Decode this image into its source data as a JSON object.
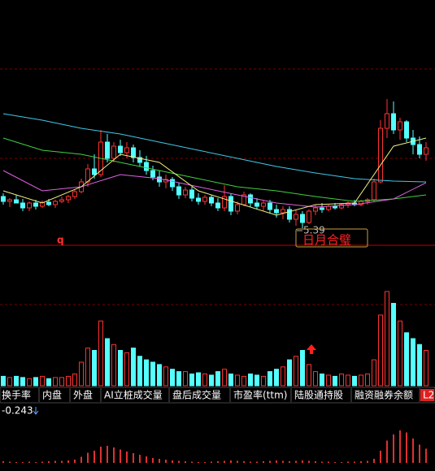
{
  "chart_data": {
    "type": "candlestick",
    "ylim": [
      5.2,
      8.2
    ],
    "candles": [
      [
        5.78,
        5.82,
        5.68,
        5.72
      ],
      [
        5.72,
        5.76,
        5.65,
        5.74
      ],
      [
        5.74,
        5.8,
        5.7,
        5.7
      ],
      [
        5.7,
        5.75,
        5.6,
        5.64
      ],
      [
        5.64,
        5.72,
        5.6,
        5.7
      ],
      [
        5.7,
        5.74,
        5.62,
        5.66
      ],
      [
        5.66,
        5.73,
        5.64,
        5.71
      ],
      [
        5.71,
        5.75,
        5.66,
        5.68
      ],
      [
        5.68,
        5.74,
        5.64,
        5.72
      ],
      [
        5.72,
        5.78,
        5.7,
        5.74
      ],
      [
        5.74,
        5.8,
        5.7,
        5.78
      ],
      [
        5.78,
        5.86,
        5.75,
        5.84
      ],
      [
        5.84,
        6.0,
        5.82,
        5.96
      ],
      [
        5.96,
        6.18,
        5.9,
        6.12
      ],
      [
        6.12,
        6.3,
        6.0,
        6.05
      ],
      [
        6.05,
        6.6,
        6.02,
        6.45
      ],
      [
        6.45,
        6.55,
        6.2,
        6.25
      ],
      [
        6.25,
        6.45,
        6.2,
        6.4
      ],
      [
        6.4,
        6.48,
        6.28,
        6.32
      ],
      [
        6.32,
        6.45,
        6.25,
        6.38
      ],
      [
        6.38,
        6.42,
        6.2,
        6.26
      ],
      [
        6.26,
        6.35,
        6.15,
        6.2
      ],
      [
        6.2,
        6.28,
        6.05,
        6.1
      ],
      [
        6.1,
        6.16,
        5.98,
        6.02
      ],
      [
        6.02,
        6.1,
        5.9,
        5.96
      ],
      [
        5.96,
        6.05,
        5.88,
        5.99
      ],
      [
        5.99,
        6.02,
        5.85,
        5.9
      ],
      [
        5.9,
        5.95,
        5.75,
        5.8
      ],
      [
        5.8,
        5.9,
        5.76,
        5.86
      ],
      [
        5.86,
        5.9,
        5.72,
        5.76
      ],
      [
        5.76,
        5.82,
        5.68,
        5.72
      ],
      [
        5.72,
        5.8,
        5.68,
        5.77
      ],
      [
        5.77,
        5.8,
        5.66,
        5.7
      ],
      [
        5.7,
        5.76,
        5.6,
        5.64
      ],
      [
        5.64,
        5.92,
        5.6,
        5.78
      ],
      [
        5.78,
        5.82,
        5.55,
        5.6
      ],
      [
        5.6,
        5.72,
        5.56,
        5.68
      ],
      [
        5.68,
        5.84,
        5.66,
        5.8
      ],
      [
        5.8,
        5.82,
        5.65,
        5.7
      ],
      [
        5.7,
        5.76,
        5.62,
        5.66
      ],
      [
        5.66,
        5.74,
        5.6,
        5.7
      ],
      [
        5.7,
        5.74,
        5.58,
        5.62
      ],
      [
        5.62,
        5.68,
        5.52,
        5.58
      ],
      [
        5.58,
        5.66,
        5.5,
        5.62
      ],
      [
        5.62,
        5.66,
        5.46,
        5.5
      ],
      [
        5.5,
        5.62,
        5.42,
        5.56
      ],
      [
        5.56,
        5.6,
        5.39,
        5.46
      ],
      [
        5.46,
        5.62,
        5.44,
        5.6
      ],
      [
        5.6,
        5.68,
        5.55,
        5.64
      ],
      [
        5.64,
        5.7,
        5.58,
        5.62
      ],
      [
        5.62,
        5.68,
        5.6,
        5.66
      ],
      [
        5.66,
        5.7,
        5.62,
        5.64
      ],
      [
        5.64,
        5.7,
        5.62,
        5.68
      ],
      [
        5.68,
        5.72,
        5.64,
        5.7
      ],
      [
        5.7,
        5.74,
        5.66,
        5.68
      ],
      [
        5.68,
        5.74,
        5.66,
        5.72
      ],
      [
        5.72,
        5.76,
        5.68,
        5.74
      ],
      [
        5.74,
        6.0,
        5.72,
        5.96
      ],
      [
        5.96,
        6.72,
        5.94,
        6.62
      ],
      [
        6.62,
        6.98,
        6.5,
        6.8
      ],
      [
        6.8,
        6.95,
        6.55,
        6.6
      ],
      [
        6.6,
        6.75,
        6.48,
        6.7
      ],
      [
        6.7,
        6.72,
        6.45,
        6.5
      ],
      [
        6.5,
        6.6,
        6.3,
        6.42
      ],
      [
        6.42,
        6.52,
        6.25,
        6.3
      ],
      [
        6.3,
        6.45,
        6.22,
        6.38
      ]
    ],
    "up_color": "#ff3232",
    "down_color": "#54ffff",
    "series": [
      {
        "color": "#3fc8e8",
        "x": [
          0,
          6,
          12,
          18,
          24,
          30,
          36,
          42,
          48,
          54,
          60,
          65
        ],
        "values": [
          6.8,
          6.72,
          6.62,
          6.55,
          6.45,
          6.35,
          6.25,
          6.15,
          6.07,
          6.0,
          5.97,
          5.96
        ]
      },
      {
        "color": "#40d040",
        "x": [
          0,
          6,
          12,
          18,
          24,
          30,
          36,
          42,
          48,
          54,
          60,
          65
        ],
        "values": [
          6.5,
          6.35,
          6.3,
          6.2,
          6.1,
          6.0,
          5.9,
          5.85,
          5.78,
          5.72,
          5.75,
          5.8
        ]
      },
      {
        "color": "#e060e0",
        "x": [
          0,
          6,
          12,
          18,
          24,
          30,
          36,
          42,
          48,
          54,
          60,
          65
        ],
        "values": [
          6.1,
          5.85,
          5.9,
          6.05,
          6.0,
          5.9,
          5.8,
          5.7,
          5.65,
          5.68,
          5.75,
          5.95
        ]
      },
      {
        "color": "#f0f080",
        "x": [
          0,
          6,
          12,
          18,
          24,
          30,
          36,
          42,
          48,
          54,
          60,
          65
        ],
        "values": [
          5.85,
          5.7,
          5.9,
          6.3,
          6.2,
          5.85,
          5.7,
          5.55,
          5.68,
          5.7,
          6.4,
          6.5
        ]
      }
    ],
    "low_label": "5.39",
    "signal": "日月合璧",
    "marker": "q",
    "volume": {
      "ylim": [
        0,
        100
      ],
      "values": [
        8,
        7,
        8,
        7,
        6,
        7,
        8,
        6,
        7,
        7,
        8,
        10,
        20,
        32,
        30,
        55,
        40,
        35,
        30,
        28,
        32,
        25,
        22,
        20,
        18,
        16,
        14,
        12,
        12,
        10,
        11,
        10,
        9,
        12,
        14,
        10,
        9,
        8,
        10,
        9,
        8,
        12,
        14,
        16,
        22,
        25,
        30,
        18,
        12,
        10,
        9,
        8,
        10,
        9,
        8,
        9,
        10,
        22,
        60,
        80,
        70,
        55,
        45,
        40,
        35,
        30
      ]
    },
    "indicator": {
      "ylim": [
        -0.2,
        1
      ],
      "values": [
        0.04,
        0.03,
        0.02,
        0.02,
        0.03,
        0.02,
        0.03,
        0.04,
        0.05,
        0.05,
        0.06,
        0.08,
        0.15,
        0.25,
        0.3,
        0.4,
        0.42,
        0.38,
        0.33,
        0.28,
        0.24,
        0.2,
        0.16,
        0.12,
        0.1,
        0.08,
        0.06,
        0.05,
        0.04,
        0.03,
        0.02,
        0.02,
        0.03,
        0.04,
        0.05,
        0.06,
        0.05,
        0.04,
        0.03,
        0.03,
        0.04,
        0.05,
        0.06,
        0.05,
        0.04,
        0.05,
        0.06,
        0.05,
        0.04,
        0.03,
        0.03,
        0.02,
        0.02,
        0.03,
        0.03,
        0.04,
        0.05,
        0.1,
        0.3,
        0.55,
        0.7,
        0.8,
        0.75,
        0.6,
        0.45,
        0.35
      ]
    }
  },
  "tabs": [
    "换手率",
    "内盘",
    "外盘",
    "AI立桩成交量",
    "盘后成交量",
    "市盈率(ttm)",
    "陆股通持股",
    "融资融券余额",
    "L2"
  ],
  "indicator_readout": "-0.243"
}
